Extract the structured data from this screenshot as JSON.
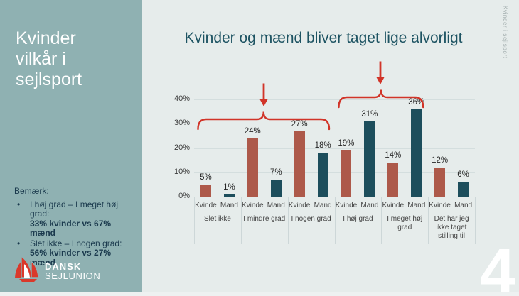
{
  "slide": {
    "sidebar": {
      "title_lines": [
        "Kvinder",
        "vilkår i",
        "sejlsport"
      ],
      "note_heading": "Bemærk:",
      "bullet_glyph": "•",
      "notes": [
        {
          "label": "I høj grad – I meget høj grad:",
          "stat": "33% kvinder vs 67% mænd"
        },
        {
          "label": "Slet ikke – I nogen grad:",
          "stat": "56% kvinder vs 27% mænd"
        }
      ],
      "logo": {
        "line1": "DANSK",
        "line2": "SEJLUNION"
      }
    },
    "header": {
      "title": "Kvinder og mænd bliver taget lige alvorligt"
    },
    "side_text": "Kvinder i sejlsport",
    "page_number": "4"
  },
  "colors": {
    "sidebar_bg": "#8fb1b2",
    "main_bg": "#e6eceb",
    "title_teal": "#1d5362",
    "kvinde_bar": "#ad594a",
    "mand_bar": "#1d4e5c",
    "annotation_red": "#d13428",
    "logo_red": "#da392b",
    "page_number": "#ffffff"
  },
  "chart_data": {
    "type": "bar",
    "title": "Kvinder og mænd bliver taget lige alvorligt",
    "categories": [
      "Slet ikke",
      "I mindre grad",
      "I nogen grad",
      "I høj grad",
      "I meget høj grad",
      "Det har jeg ikke taget stilling til"
    ],
    "series": [
      {
        "name": "Kvinde",
        "color": "#ad594a",
        "values": [
          5,
          24,
          27,
          19,
          14,
          12
        ]
      },
      {
        "name": "Mand",
        "color": "#1d4e5c",
        "values": [
          1,
          7,
          18,
          31,
          36,
          6
        ]
      }
    ],
    "bar_value_labels": [
      [
        "5%",
        "24%",
        "27%",
        "19%",
        "14%",
        "12%"
      ],
      [
        "1%",
        "7%",
        "18%",
        "31%",
        "36%",
        "6%"
      ]
    ],
    "xlabel": "",
    "ylabel": "",
    "ylim": [
      0,
      40
    ],
    "y_ticks": [
      0,
      10,
      20,
      30,
      40
    ],
    "y_tick_labels": [
      "0%",
      "10%",
      "20%",
      "30%",
      "40%"
    ],
    "grid": true,
    "legend_position": "none",
    "annotations": [
      {
        "type": "brace-arrow",
        "from_category": "Slet ikke",
        "to_category": "I nogen grad",
        "color": "#d13428"
      },
      {
        "type": "brace-arrow",
        "from_category": "I høj grad",
        "to_category": "I meget høj grad",
        "color": "#d13428"
      }
    ]
  }
}
